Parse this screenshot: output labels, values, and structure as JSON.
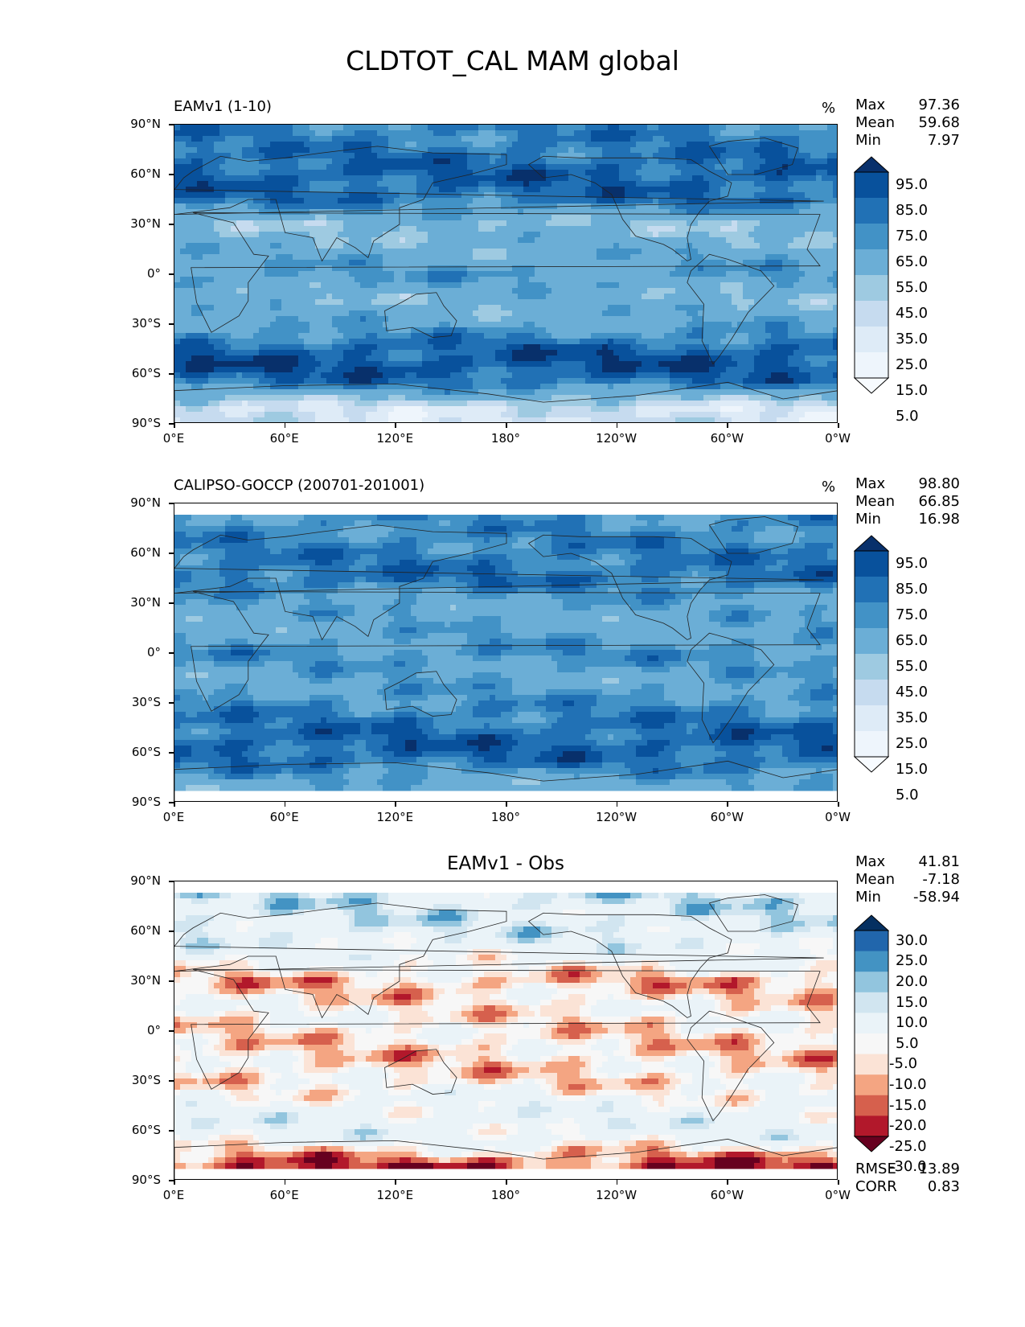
{
  "figure": {
    "title": "CLDTOT_CAL MAM global"
  },
  "axes": {
    "y_ticks": [
      "90°N",
      "60°N",
      "30°N",
      "0°",
      "30°S",
      "60°S",
      "90°S"
    ],
    "x_ticks": [
      "0°E",
      "60°E",
      "120°E",
      "180°",
      "120°W",
      "60°W",
      "0°W"
    ]
  },
  "panels": [
    {
      "label": "EAMv1 (1-10)",
      "title": "",
      "unit": "%",
      "stats": [
        {
          "k": "Max",
          "v": "97.36"
        },
        {
          "k": "Mean",
          "v": "59.68"
        },
        {
          "k": "Min",
          "v": "7.97"
        }
      ],
      "colorbar": {
        "labels": [
          "95.0",
          "85.0",
          "75.0",
          "65.0",
          "55.0",
          "45.0",
          "35.0",
          "25.0",
          "15.0",
          "5.0"
        ],
        "colors": [
          "#08306b",
          "#08519c",
          "#2171b5",
          "#4292c6",
          "#6baed6",
          "#9ecae1",
          "#c6dbef",
          "#deebf7",
          "#eef5fc",
          "#f7fbff"
        ]
      },
      "footer": []
    },
    {
      "label": "CALIPSO-GOCCP (200701-201001)",
      "title": "",
      "unit": "%",
      "stats": [
        {
          "k": "Max",
          "v": "98.80"
        },
        {
          "k": "Mean",
          "v": "66.85"
        },
        {
          "k": "Min",
          "v": "16.98"
        }
      ],
      "colorbar": {
        "labels": [
          "95.0",
          "85.0",
          "75.0",
          "65.0",
          "55.0",
          "45.0",
          "35.0",
          "25.0",
          "15.0",
          "5.0"
        ],
        "colors": [
          "#08306b",
          "#08519c",
          "#2171b5",
          "#4292c6",
          "#6baed6",
          "#9ecae1",
          "#c6dbef",
          "#deebf7",
          "#eef5fc",
          "#f7fbff"
        ]
      },
      "footer": []
    },
    {
      "label": "",
      "title": "EAMv1 - Obs",
      "unit": "",
      "stats": [
        {
          "k": "Max",
          "v": "41.81"
        },
        {
          "k": "Mean",
          "v": "-7.18"
        },
        {
          "k": "Min",
          "v": "-58.94"
        }
      ],
      "colorbar": {
        "labels": [
          "30.0",
          "25.0",
          "20.0",
          "15.0",
          "10.0",
          "5.0",
          "-5.0",
          "-10.0",
          "-15.0",
          "-20.0",
          "-25.0",
          "-30.0"
        ],
        "colors": [
          "#053061",
          "#2166ac",
          "#4393c3",
          "#92c5de",
          "#d1e5f0",
          "#eaf3f8",
          "#f7f7f7",
          "#fbe3d6",
          "#f4a582",
          "#d6604d",
          "#b2182b",
          "#67001f"
        ]
      },
      "footer": [
        {
          "k": "RMSE",
          "v": "13.89"
        },
        {
          "k": "CORR",
          "v": "0.83"
        }
      ]
    }
  ],
  "chart_data": [
    {
      "type": "heatmap",
      "title": "EAMv1 (1-10)",
      "unit": "%",
      "x_ticks": [
        "0°E",
        "60°E",
        "120°E",
        "180°",
        "120°W",
        "60°W",
        "0°W"
      ],
      "y_ticks": [
        "90°N",
        "60°N",
        "30°N",
        "0°",
        "30°S",
        "60°S",
        "90°S"
      ],
      "contour_levels": [
        5,
        15,
        25,
        35,
        45,
        55,
        65,
        75,
        85,
        95
      ],
      "stats": {
        "Max": 97.36,
        "Mean": 59.68,
        "Min": 7.97
      },
      "zonal_mean_estimate": {
        "lat": [
          80,
          60,
          45,
          30,
          15,
          0,
          -15,
          -30,
          -45,
          -55,
          -65,
          -80
        ],
        "value": [
          75,
          85,
          80,
          45,
          55,
          65,
          50,
          60,
          85,
          90,
          80,
          25
        ]
      }
    },
    {
      "type": "heatmap",
      "title": "CALIPSO-GOCCP (200701-201001)",
      "unit": "%",
      "x_ticks": [
        "0°E",
        "60°E",
        "120°E",
        "180°",
        "120°W",
        "60°W",
        "0°W"
      ],
      "y_ticks": [
        "90°N",
        "60°N",
        "30°N",
        "0°",
        "30°S",
        "60°S",
        "90°S"
      ],
      "contour_levels": [
        5,
        15,
        25,
        35,
        45,
        55,
        65,
        75,
        85,
        95
      ],
      "stats": {
        "Max": 98.8,
        "Mean": 66.85,
        "Min": 16.98
      },
      "zonal_mean_estimate": {
        "lat": [
          80,
          60,
          45,
          30,
          15,
          0,
          -15,
          -30,
          -45,
          -55,
          -65,
          -80
        ],
        "value": [
          70,
          75,
          80,
          60,
          60,
          70,
          60,
          70,
          80,
          85,
          80,
          55
        ]
      }
    },
    {
      "type": "heatmap",
      "title": "EAMv1 - Obs",
      "x_ticks": [
        "0°E",
        "60°E",
        "120°E",
        "180°",
        "120°W",
        "60°W",
        "0°W"
      ],
      "y_ticks": [
        "90°N",
        "60°N",
        "30°N",
        "0°",
        "30°S",
        "60°S",
        "90°S"
      ],
      "contour_levels": [
        -30,
        -25,
        -20,
        -15,
        -10,
        -5,
        5,
        10,
        15,
        20,
        25,
        30
      ],
      "stats": {
        "Max": 41.81,
        "Mean": -7.18,
        "Min": -58.94,
        "RMSE": 13.89,
        "CORR": 0.83
      },
      "zonal_mean_estimate": {
        "lat": [
          80,
          60,
          45,
          30,
          15,
          0,
          -15,
          -30,
          -45,
          -55,
          -65,
          -80
        ],
        "value": [
          10,
          8,
          0,
          -15,
          -8,
          -10,
          -12,
          -10,
          0,
          3,
          0,
          -25
        ]
      }
    }
  ]
}
